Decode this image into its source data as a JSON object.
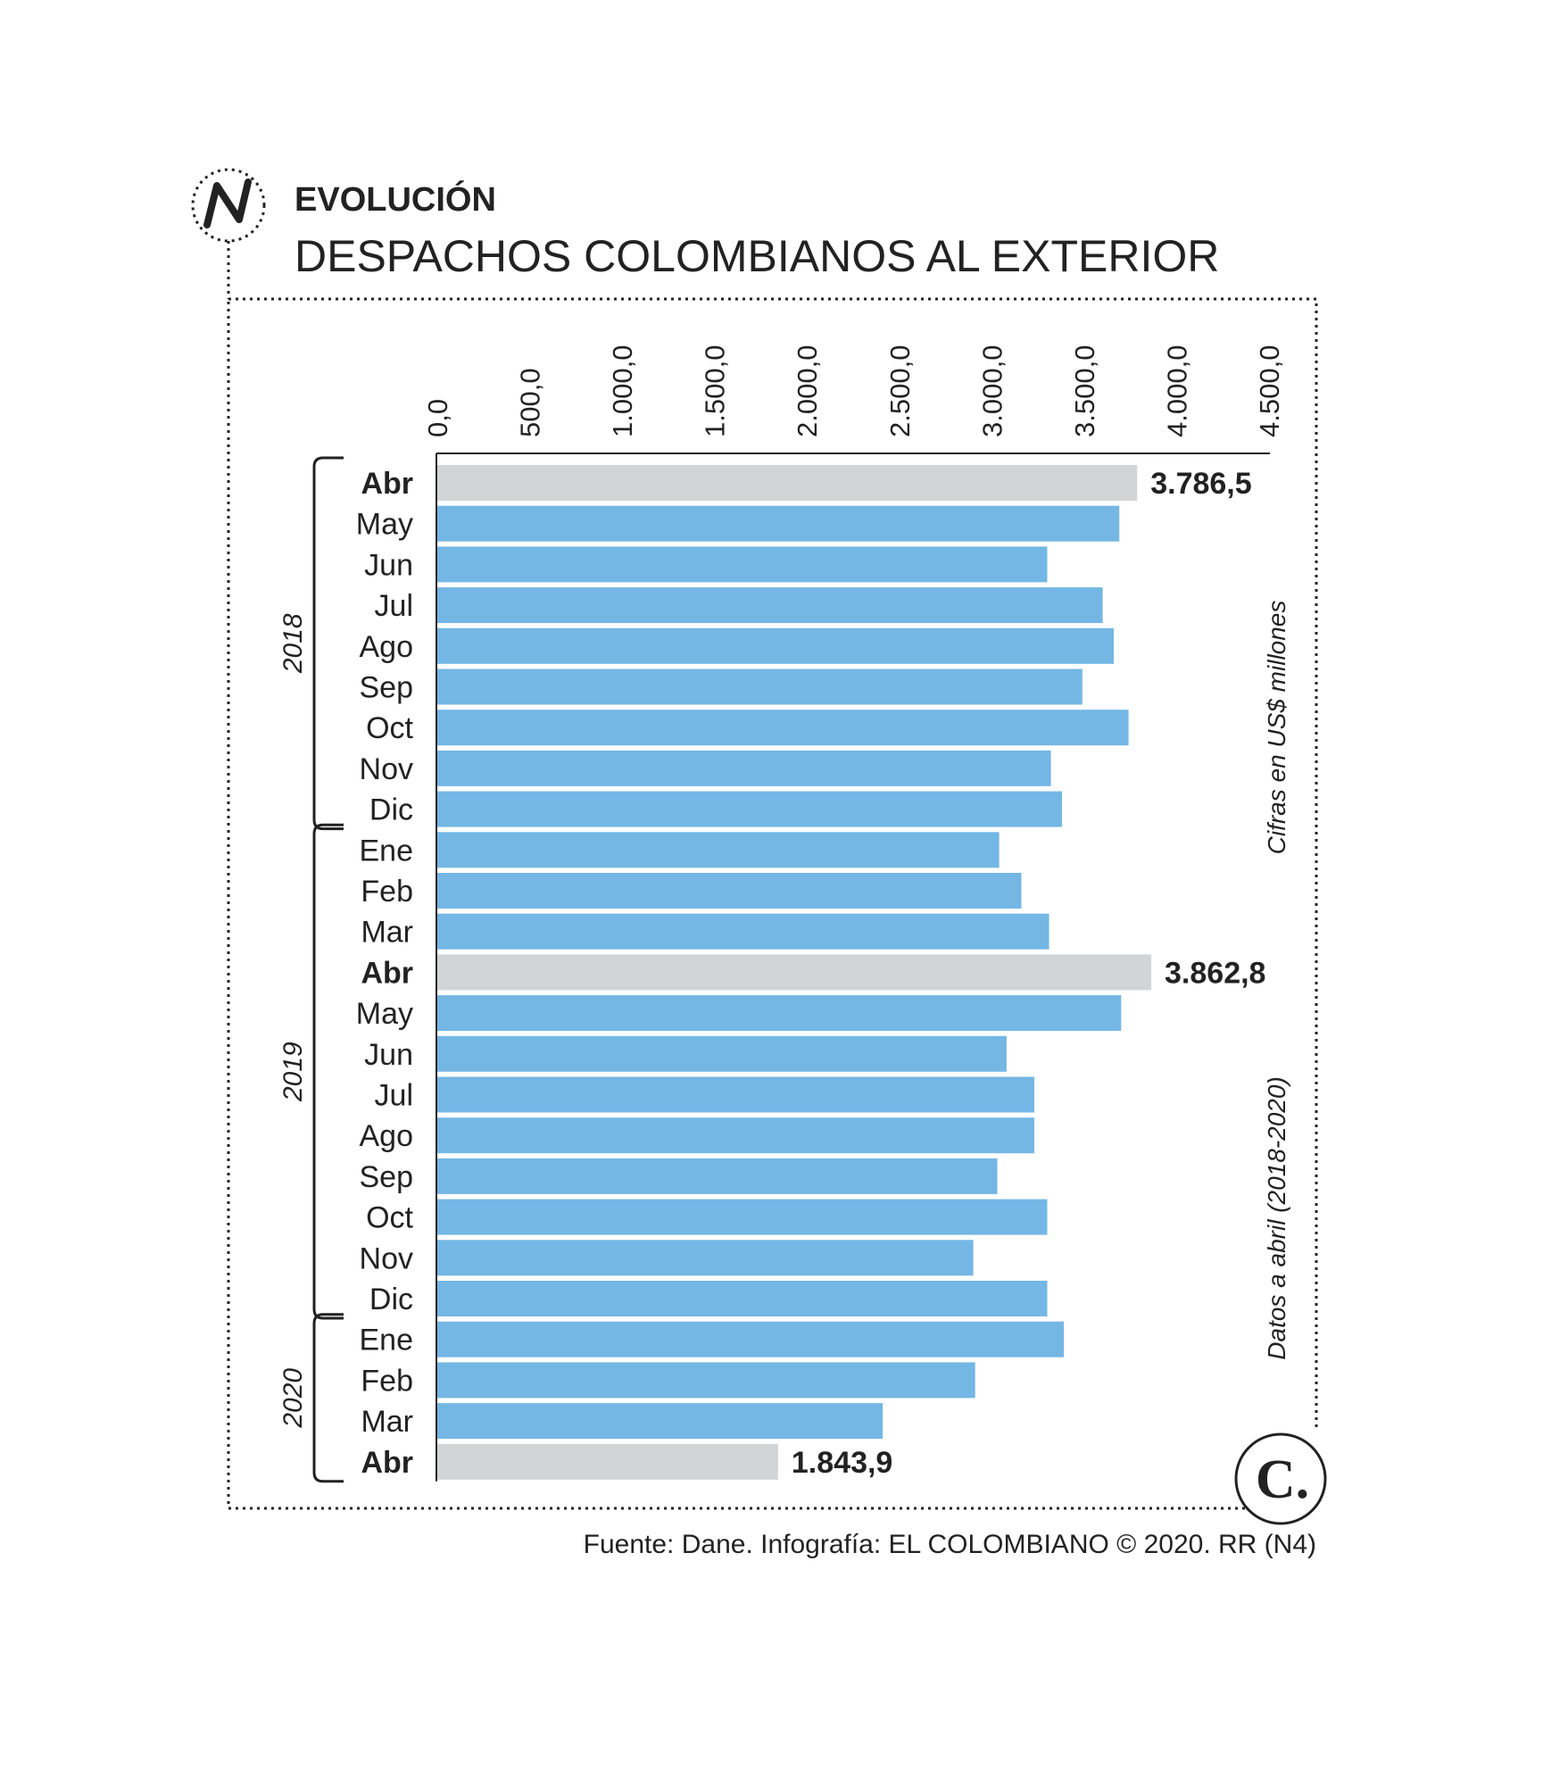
{
  "header": {
    "section_label": "EVOLUCIÓN",
    "title": "DESPACHOS COLOMBIANOS AL EXTERIOR",
    "logo_letter": "N"
  },
  "side_notes": {
    "units": "Cifras en US$ millones",
    "coverage": "Datos a abril (2018-2020)"
  },
  "source": "Fuente: Dane. Infografía: EL COLOMBIANO © 2020. RR (N4)",
  "brand_mark": "C.",
  "colors": {
    "bar": "#74b7e4",
    "highlight": "#d3d4d6",
    "text": "#222222"
  },
  "chart_data": {
    "type": "bar",
    "orientation": "horizontal",
    "xlim": [
      0,
      4500
    ],
    "x_ticks": [
      "0,0",
      "500,0",
      "1.000,0",
      "1.500,0",
      "2.000,0",
      "2.500,0",
      "3.000,0",
      "3.500,0",
      "4.000,0",
      "4.500,0"
    ],
    "x_tick_values": [
      0,
      500,
      1000,
      1500,
      2000,
      2500,
      3000,
      3500,
      4000,
      4500
    ],
    "groups": [
      {
        "label": "2018",
        "start": 0,
        "end": 8
      },
      {
        "label": "2019",
        "start": 9,
        "end": 20
      },
      {
        "label": "2020",
        "start": 21,
        "end": 24
      }
    ],
    "bars": [
      {
        "label": "Abr",
        "value": 3786.5,
        "highlight": true,
        "value_label": "3.786,5"
      },
      {
        "label": "May",
        "value": 3690
      },
      {
        "label": "Jun",
        "value": 3300
      },
      {
        "label": "Jul",
        "value": 3600
      },
      {
        "label": "Ago",
        "value": 3660
      },
      {
        "label": "Sep",
        "value": 3490
      },
      {
        "label": "Oct",
        "value": 3740
      },
      {
        "label": "Nov",
        "value": 3320
      },
      {
        "label": "Dic",
        "value": 3380
      },
      {
        "label": "Ene",
        "value": 3040
      },
      {
        "label": "Feb",
        "value": 3160
      },
      {
        "label": "Mar",
        "value": 3310
      },
      {
        "label": "Abr",
        "value": 3862.8,
        "highlight": true,
        "value_label": "3.862,8"
      },
      {
        "label": "May",
        "value": 3700
      },
      {
        "label": "Jun",
        "value": 3080
      },
      {
        "label": "Jul",
        "value": 3230
      },
      {
        "label": "Ago",
        "value": 3230
      },
      {
        "label": "Sep",
        "value": 3030
      },
      {
        "label": "Oct",
        "value": 3300
      },
      {
        "label": "Nov",
        "value": 2900
      },
      {
        "label": "Dic",
        "value": 3300
      },
      {
        "label": "Ene",
        "value": 3390
      },
      {
        "label": "Feb",
        "value": 2910
      },
      {
        "label": "Mar",
        "value": 2410
      },
      {
        "label": "Abr",
        "value": 1843.9,
        "highlight": true,
        "value_label": "1.843,9"
      }
    ]
  }
}
